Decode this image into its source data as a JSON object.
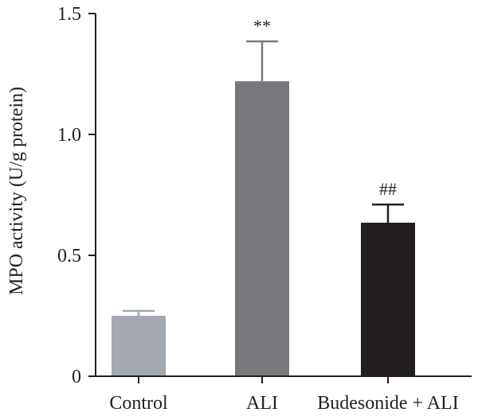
{
  "chart_data": {
    "type": "bar",
    "title": "",
    "xlabel": "",
    "ylabel": "MPO activity (U/g protein)",
    "ylim": [
      0,
      1.5
    ],
    "yticks": [
      0,
      0.5,
      1.0,
      1.5
    ],
    "ytick_labels": [
      "0",
      "0.5",
      "1.0",
      "1.5"
    ],
    "categories": [
      "Control",
      "ALI",
      "Budesonide + ALI"
    ],
    "values": [
      0.25,
      1.22,
      0.635
    ],
    "errors": [
      0.02,
      0.165,
      0.075
    ],
    "annotations": [
      "",
      "**",
      "##"
    ],
    "colors": [
      "#a3a8b1",
      "#77787b",
      "#231f20"
    ],
    "grid": false,
    "legend": "none"
  }
}
